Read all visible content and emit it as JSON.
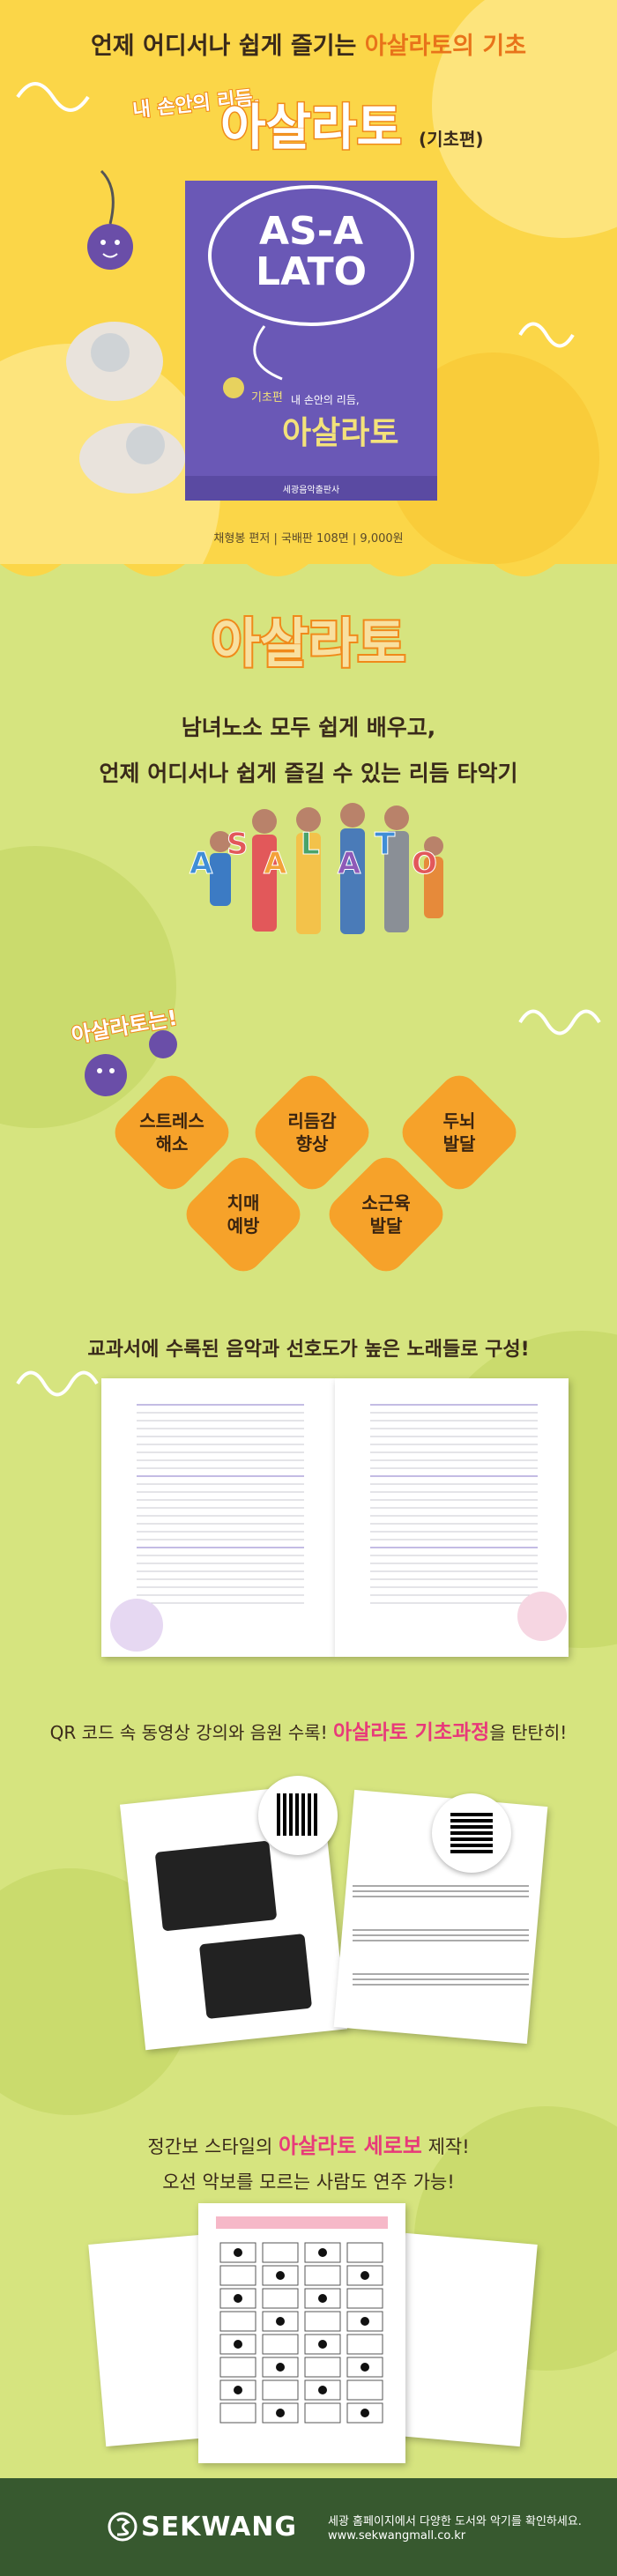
{
  "hero": {
    "headline": [
      "언제 어디서나 쉽게 즐기는 ",
      "아살라토의 기초"
    ],
    "subtitle": "내 손안의 리듬,",
    "title": "아살라토",
    "edition": "(기초편)",
    "cover": {
      "logo_top": "AS-A",
      "logo_bottom": "LATO",
      "subtitle": "내 손안의 리듬,",
      "title": "아살라토",
      "edition": "기초편",
      "publisher": "세광음악출판사"
    },
    "caption": "채형봉 편저 | 국배판 108면 | 9,000원"
  },
  "intro": {
    "title": "아살라토",
    "lines": [
      "남녀노소 모두 쉽게 배우고,",
      "언제 어디서나 쉽게 즐길 수 있는 리듬 타악기"
    ],
    "letters": [
      "A",
      "S",
      "A",
      "L",
      "A",
      "T",
      "O"
    ]
  },
  "benefits": {
    "heading": "아살라토는!",
    "items": [
      {
        "lines": [
          "스트레스",
          "해소"
        ]
      },
      {
        "lines": [
          "리듬감",
          "향상"
        ]
      },
      {
        "lines": [
          "두뇌",
          "발달"
        ]
      },
      {
        "lines": [
          "치매",
          "예방"
        ]
      },
      {
        "lines": [
          "소근육",
          "발달"
        ]
      }
    ]
  },
  "contents": {
    "heading": "교과서에 수록된 음악과 선호도가 높은 노래들로 구성!"
  },
  "qr": {
    "heading": [
      "QR 코드 속 동영상 강의와 음원 수록! ",
      "아살라토 기초과정",
      "을 탄탄히!"
    ]
  },
  "score": {
    "line1": [
      "정간보 스타일의 ",
      "아살라토 세로보",
      " 제작!"
    ],
    "line2": "오선 악보를 모르는 사람도 연주 가능!"
  },
  "footer": {
    "logo": "SEKWANG",
    "text": "세광 홈페이지에서 다양한 도서와 악기를 확인하세요.",
    "url": "www.sekwangmall.co.kr"
  }
}
